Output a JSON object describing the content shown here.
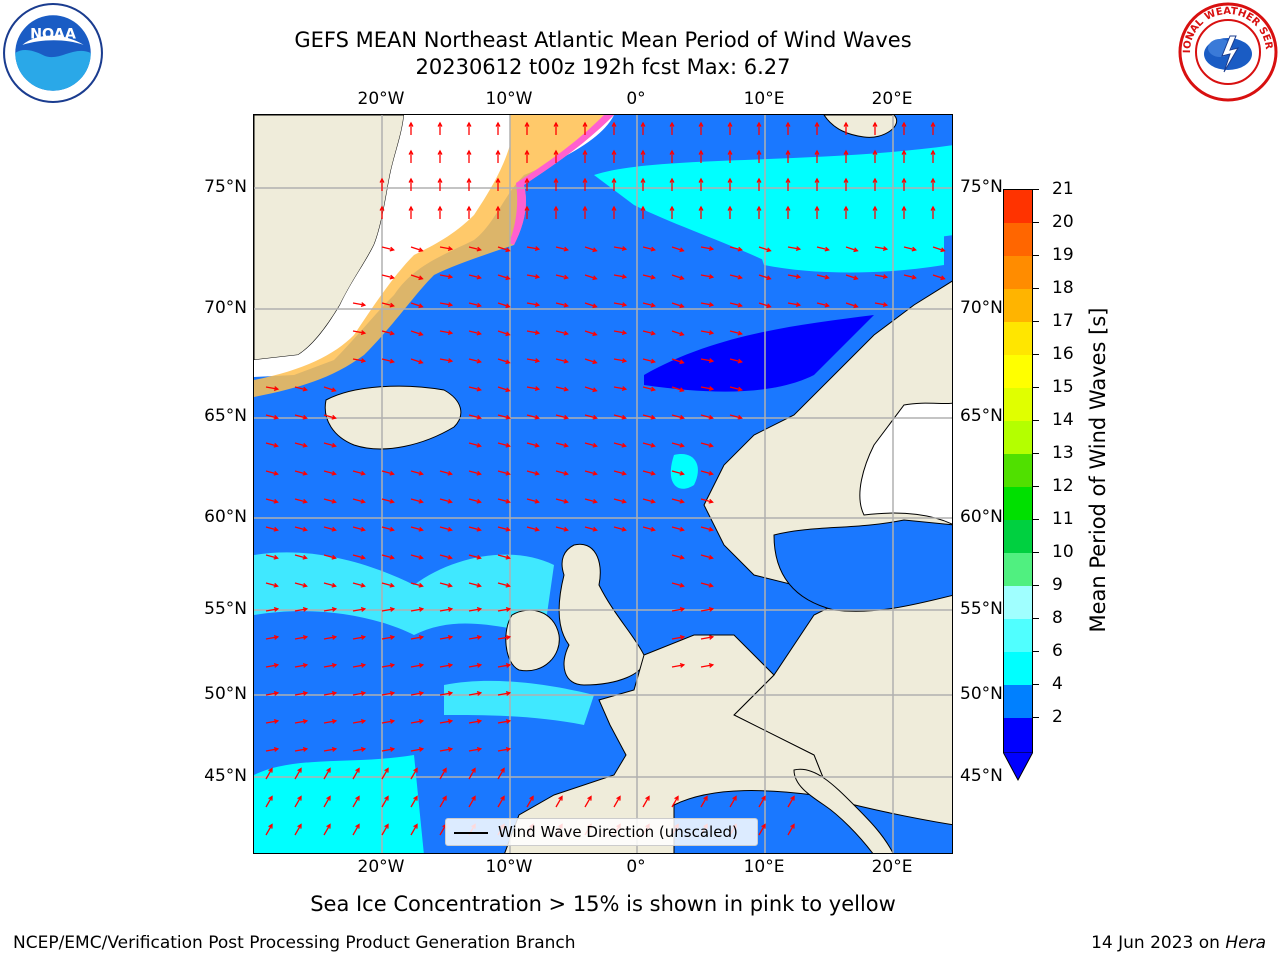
{
  "header": {
    "title_line1": "GEFS MEAN Northeast Atlantic Mean Period of Wind Waves",
    "title_line2": "20230612 t00z 192h fcst   Max: 6.27"
  },
  "logos": {
    "left": "noaa-logo",
    "right": "nws-logo",
    "left_text": "NOAA",
    "right_text": "NATIONAL WEATHER SERVICE"
  },
  "map": {
    "lon_ticks_top": [
      "20°W",
      "10°W",
      "0°",
      "10°E",
      "20°E"
    ],
    "lon_ticks_bottom": [
      "20°W",
      "10°W",
      "0°",
      "10°E",
      "20°E"
    ],
    "lat_ticks_left": [
      "75°N",
      "70°N",
      "65°N",
      "60°N",
      "55°N",
      "50°N",
      "45°N"
    ],
    "lat_ticks_right": [
      "75°N",
      "70°N",
      "65°N",
      "60°N",
      "55°N",
      "50°N",
      "45°N"
    ],
    "colors": {
      "ocean": "#1a78ff",
      "land": "#efecda",
      "ice": "#ffffff",
      "arrow": "#ff0000"
    }
  },
  "legend": {
    "label": "Wind Wave Direction (unscaled)"
  },
  "colorbar": {
    "label": "Mean Period of Wind Waves [s]",
    "ticks": [
      "21",
      "20",
      "19",
      "18",
      "17",
      "16",
      "15",
      "14",
      "13",
      "12",
      "11",
      "10",
      "9",
      "8",
      "6",
      "4",
      "2"
    ],
    "colors": [
      "#ff0000",
      "#ff3300",
      "#ff6600",
      "#ff8c00",
      "#ffb400",
      "#ffe600",
      "#ffff00",
      "#e0ff00",
      "#b4ff00",
      "#50e000",
      "#00e000",
      "#00d040",
      "#50f080",
      "#a0ffff",
      "#50ffff",
      "#00ffff",
      "#0080ff",
      "#0000ff"
    ]
  },
  "bottom_note": "Sea Ice Concentration > 15% is shown in pink to yellow",
  "footer": {
    "left": "NCEP/EMC/Verification Post Processing Product Generation Branch",
    "date": "14 Jun 2023 on ",
    "machine": "Hera"
  }
}
